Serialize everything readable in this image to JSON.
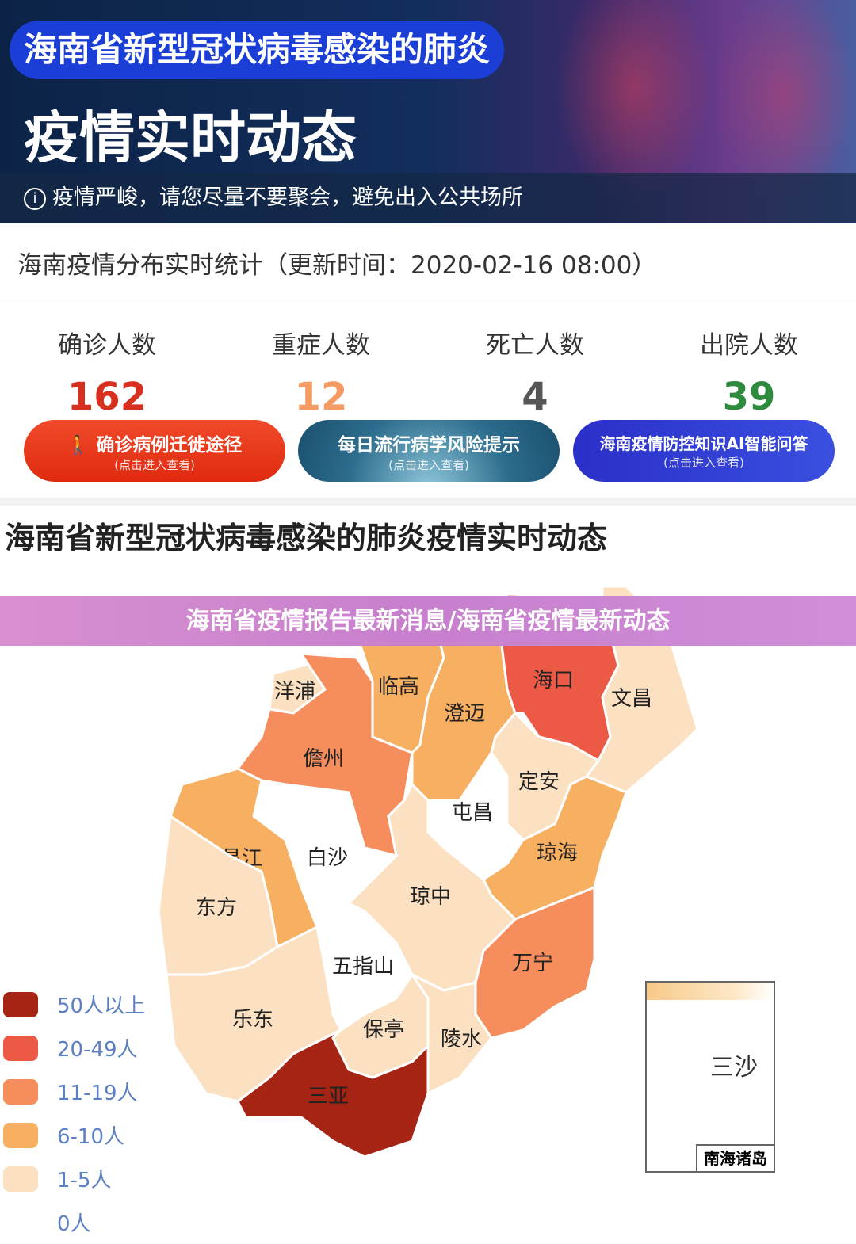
{
  "hero": {
    "pill": "海南省新型冠状病毒感染的肺炎",
    "title": "疫情实时动态",
    "notice": "疫情严峻，请您尽量不要聚会，避免出入公共场所",
    "info_icon": "info-icon"
  },
  "stats_header": "海南疫情分布实时统计（更新时间：2020-02-16 08:00）",
  "stats": [
    {
      "label": "确诊人数",
      "value": "162",
      "color": "#d7301f"
    },
    {
      "label": "重症人数",
      "value": "12",
      "color": "#f59a63"
    },
    {
      "label": "死亡人数",
      "value": "4",
      "color": "#555555"
    },
    {
      "label": "出院人数",
      "value": "39",
      "color": "#2e8b3e"
    }
  ],
  "buttons": [
    {
      "title": "确诊病例迁徙途径",
      "sub": "(点击进入查看)"
    },
    {
      "title": "每日流行病学风险提示",
      "sub": "(点击进入查看)"
    },
    {
      "title": "海南疫情防控知识AI智能问答",
      "sub": "(点击进入查看)"
    }
  ],
  "section_title": "海南省新型冠状病毒感染的肺炎疫情实时动态",
  "overlay_title": "海南省疫情报告最新消息/海南省疫情最新动态",
  "legend": [
    {
      "label": "50人以上",
      "color": "#a52414"
    },
    {
      "label": "20-49人",
      "color": "#ec5a46"
    },
    {
      "label": "11-19人",
      "color": "#f58d5c"
    },
    {
      "label": "6-10人",
      "color": "#f7b062"
    },
    {
      "label": "1-5人",
      "color": "#fbe1c2"
    },
    {
      "label": "0人",
      "color": "#ffffff"
    }
  ],
  "regions": [
    {
      "name": "洋浦",
      "level": 4
    },
    {
      "name": "儋州",
      "level": 2
    },
    {
      "name": "临高",
      "level": 3
    },
    {
      "name": "澄迈",
      "level": 3
    },
    {
      "name": "海口",
      "level": 1
    },
    {
      "name": "文昌",
      "level": 4
    },
    {
      "name": "定安",
      "level": 4
    },
    {
      "name": "屯昌",
      "level": 5
    },
    {
      "name": "琼海",
      "level": 3
    },
    {
      "name": "万宁",
      "level": 2
    },
    {
      "name": "琼中",
      "level": 4
    },
    {
      "name": "白沙",
      "level": 5
    },
    {
      "name": "昌江",
      "level": 3
    },
    {
      "name": "东方",
      "level": 4
    },
    {
      "name": "乐东",
      "level": 4
    },
    {
      "name": "五指山",
      "level": 5
    },
    {
      "name": "保亭",
      "level": 4
    },
    {
      "name": "陵水",
      "level": 4
    },
    {
      "name": "三亚",
      "level": 0
    }
  ],
  "inset": {
    "label": "三沙",
    "box": "南海诸岛"
  }
}
